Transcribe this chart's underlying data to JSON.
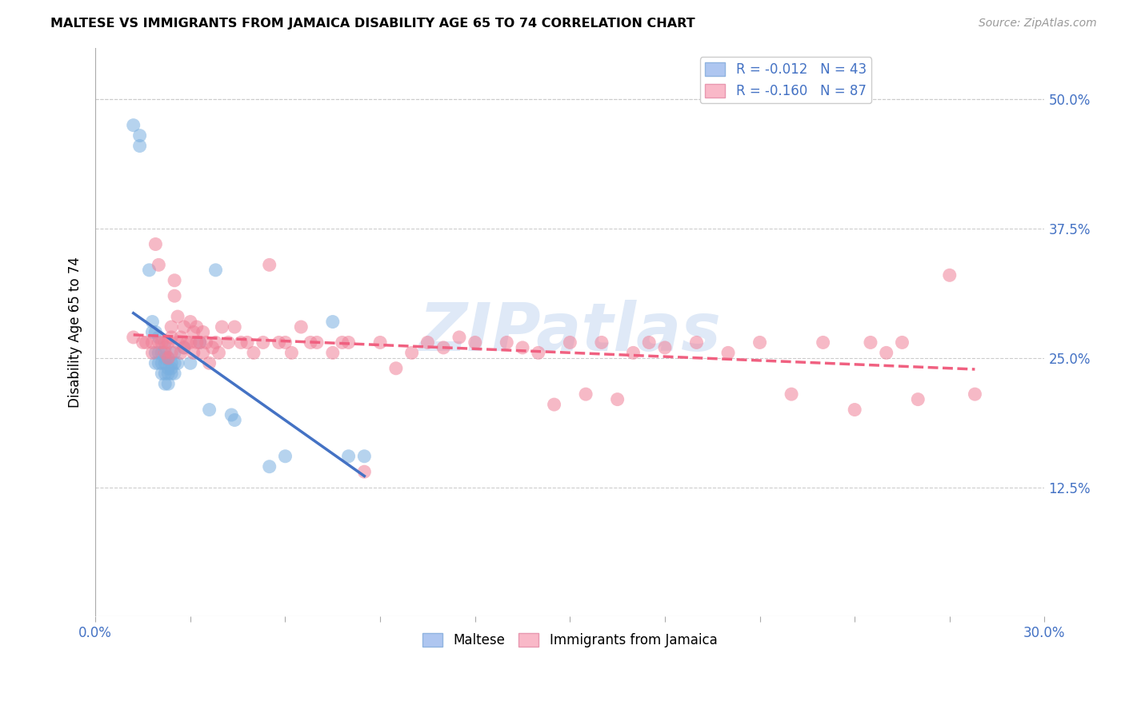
{
  "title": "MALTESE VS IMMIGRANTS FROM JAMAICA DISABILITY AGE 65 TO 74 CORRELATION CHART",
  "source": "Source: ZipAtlas.com",
  "ylabel": "Disability Age 65 to 74",
  "ytick_labels": [
    "12.5%",
    "25.0%",
    "37.5%",
    "50.0%"
  ],
  "ytick_values": [
    0.125,
    0.25,
    0.375,
    0.5
  ],
  "xlim": [
    0.0,
    0.3
  ],
  "ylim": [
    0.0,
    0.55
  ],
  "legend_labels": [
    "Maltese",
    "Immigrants from Jamaica"
  ],
  "maltese_color": "#7ab0e0",
  "jamaica_color": "#f08098",
  "maltese_line_color": "#4472c4",
  "jamaica_line_color": "#f06080",
  "watermark": "ZIPatlas",
  "maltese_scatter_x": [
    0.012,
    0.014,
    0.014,
    0.017,
    0.018,
    0.018,
    0.019,
    0.019,
    0.019,
    0.02,
    0.02,
    0.02,
    0.021,
    0.021,
    0.021,
    0.022,
    0.022,
    0.022,
    0.022,
    0.022,
    0.023,
    0.023,
    0.023,
    0.023,
    0.024,
    0.024,
    0.024,
    0.025,
    0.025,
    0.025,
    0.026,
    0.028,
    0.03,
    0.033,
    0.036,
    0.038,
    0.043,
    0.044,
    0.055,
    0.06,
    0.075,
    0.08,
    0.085
  ],
  "maltese_scatter_y": [
    0.475,
    0.465,
    0.455,
    0.335,
    0.285,
    0.275,
    0.275,
    0.255,
    0.245,
    0.27,
    0.255,
    0.245,
    0.255,
    0.245,
    0.235,
    0.26,
    0.25,
    0.245,
    0.235,
    0.225,
    0.25,
    0.24,
    0.235,
    0.225,
    0.245,
    0.24,
    0.235,
    0.255,
    0.245,
    0.235,
    0.245,
    0.26,
    0.245,
    0.265,
    0.2,
    0.335,
    0.195,
    0.19,
    0.145,
    0.155,
    0.285,
    0.155,
    0.155
  ],
  "jamaica_scatter_x": [
    0.012,
    0.015,
    0.016,
    0.018,
    0.018,
    0.019,
    0.02,
    0.02,
    0.021,
    0.022,
    0.022,
    0.023,
    0.023,
    0.024,
    0.024,
    0.024,
    0.025,
    0.025,
    0.026,
    0.026,
    0.027,
    0.027,
    0.028,
    0.028,
    0.029,
    0.03,
    0.03,
    0.031,
    0.031,
    0.032,
    0.032,
    0.033,
    0.034,
    0.034,
    0.035,
    0.036,
    0.037,
    0.038,
    0.039,
    0.04,
    0.042,
    0.044,
    0.046,
    0.048,
    0.05,
    0.053,
    0.055,
    0.058,
    0.06,
    0.062,
    0.065,
    0.068,
    0.07,
    0.075,
    0.078,
    0.08,
    0.085,
    0.09,
    0.095,
    0.1,
    0.105,
    0.11,
    0.115,
    0.12,
    0.13,
    0.135,
    0.14,
    0.145,
    0.15,
    0.155,
    0.16,
    0.165,
    0.17,
    0.175,
    0.18,
    0.19,
    0.2,
    0.21,
    0.22,
    0.23,
    0.24,
    0.245,
    0.25,
    0.255,
    0.26,
    0.27,
    0.278
  ],
  "jamaica_scatter_y": [
    0.27,
    0.265,
    0.265,
    0.265,
    0.255,
    0.36,
    0.34,
    0.265,
    0.265,
    0.265,
    0.255,
    0.265,
    0.25,
    0.28,
    0.27,
    0.255,
    0.325,
    0.31,
    0.29,
    0.265,
    0.27,
    0.255,
    0.28,
    0.26,
    0.265,
    0.285,
    0.265,
    0.275,
    0.255,
    0.28,
    0.265,
    0.265,
    0.275,
    0.255,
    0.265,
    0.245,
    0.26,
    0.265,
    0.255,
    0.28,
    0.265,
    0.28,
    0.265,
    0.265,
    0.255,
    0.265,
    0.34,
    0.265,
    0.265,
    0.255,
    0.28,
    0.265,
    0.265,
    0.255,
    0.265,
    0.265,
    0.14,
    0.265,
    0.24,
    0.255,
    0.265,
    0.26,
    0.27,
    0.265,
    0.265,
    0.26,
    0.255,
    0.205,
    0.265,
    0.215,
    0.265,
    0.21,
    0.255,
    0.265,
    0.26,
    0.265,
    0.255,
    0.265,
    0.215,
    0.265,
    0.2,
    0.265,
    0.255,
    0.265,
    0.21,
    0.33,
    0.215
  ]
}
